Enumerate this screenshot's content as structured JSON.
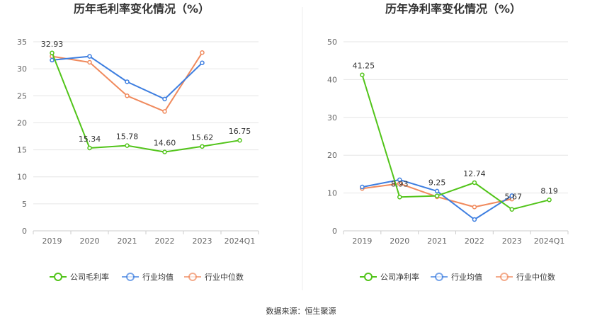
{
  "chart_data": [
    {
      "type": "line",
      "title": "历年毛利率变化情况（%）",
      "categories": [
        "2019",
        "2020",
        "2021",
        "2022",
        "2023",
        "2024Q1"
      ],
      "ylim": [
        0,
        35
      ],
      "yticks": [
        0,
        5,
        10,
        15,
        20,
        25,
        30,
        35
      ],
      "grid": true,
      "legend": "bottom",
      "series": [
        {
          "name": "公司毛利率",
          "color": "#52c41a",
          "values": [
            32.93,
            15.34,
            15.78,
            14.6,
            15.62,
            16.75
          ],
          "labels": [
            "32.93",
            "15.34",
            "15.78",
            "14.60",
            "15.62",
            "16.75"
          ]
        },
        {
          "name": "行业均值",
          "color": "#3d7ee0",
          "values": [
            31.6,
            32.3,
            27.6,
            24.4,
            31.1,
            null
          ],
          "labels": []
        },
        {
          "name": "行业中位数",
          "color": "#f08a5d",
          "values": [
            32.3,
            31.2,
            25.0,
            22.1,
            33.0,
            null
          ],
          "labels": []
        }
      ]
    },
    {
      "type": "line",
      "title": "历年净利率变化情况（%）",
      "categories": [
        "2019",
        "2020",
        "2021",
        "2022",
        "2023",
        "2024Q1"
      ],
      "ylim": [
        0,
        50
      ],
      "yticks": [
        0,
        10,
        20,
        30,
        40,
        50
      ],
      "grid": true,
      "legend": "bottom",
      "series": [
        {
          "name": "公司净利率",
          "color": "#52c41a",
          "values": [
            41.25,
            8.93,
            9.25,
            12.74,
            5.67,
            8.19
          ],
          "labels": [
            "41.25",
            "8.93",
            "9.25",
            "12.74",
            "5.67",
            "8.19"
          ]
        },
        {
          "name": "行业均值",
          "color": "#3d7ee0",
          "values": [
            11.6,
            13.5,
            10.5,
            3.0,
            9.3,
            null
          ],
          "labels": []
        },
        {
          "name": "行业中位数",
          "color": "#f08a5d",
          "values": [
            11.2,
            12.5,
            9.0,
            6.3,
            8.4,
            null
          ],
          "labels": []
        }
      ]
    }
  ],
  "source": "数据来源：恒生聚源"
}
